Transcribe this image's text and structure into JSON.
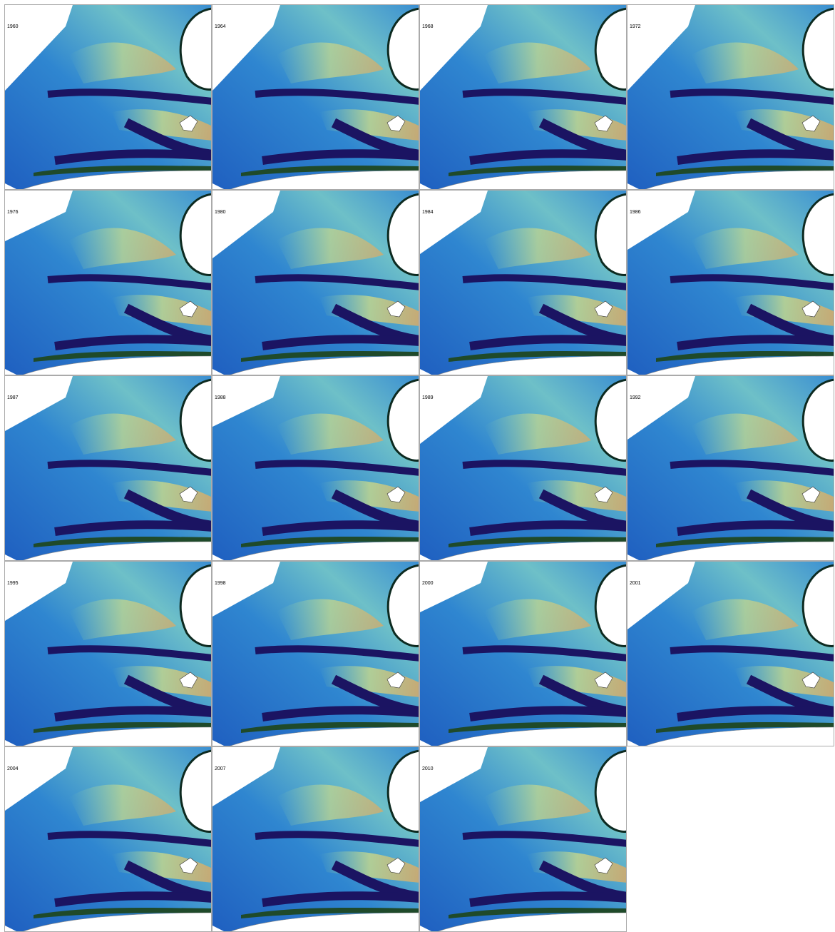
{
  "panels": [
    {
      "label": "1960"
    },
    {
      "label": "1964"
    },
    {
      "label": "1968"
    },
    {
      "label": "1972"
    },
    {
      "label": "1976"
    },
    {
      "label": "1980"
    },
    {
      "label": "1984"
    },
    {
      "label": "1986"
    },
    {
      "label": "1987"
    },
    {
      "label": "1988"
    },
    {
      "label": "1989"
    },
    {
      "label": "1992"
    },
    {
      "label": "1995"
    },
    {
      "label": "1998"
    },
    {
      "label": "2000"
    },
    {
      "label": "2001"
    },
    {
      "label": "2004"
    },
    {
      "label": "2007"
    },
    {
      "label": "2010"
    }
  ]
}
